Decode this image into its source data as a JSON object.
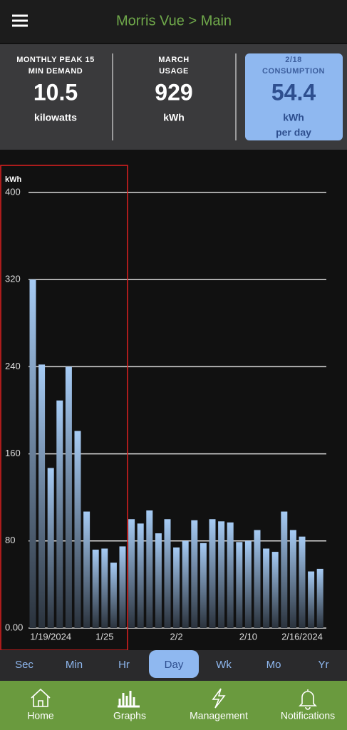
{
  "header": {
    "title": "Morris Vue > Main"
  },
  "stats": [
    {
      "title_lines": [
        "MONTHLY PEAK 15",
        "MIN DEMAND"
      ],
      "value": 10.5,
      "unit_lines": [
        "kilowatts"
      ]
    },
    {
      "title_lines": [
        "MARCH",
        "USAGE"
      ],
      "value": 929,
      "unit_lines": [
        "kWh"
      ]
    },
    {
      "title_lines": [
        "2/18",
        "CONSUMPTION"
      ],
      "value": 54.4,
      "unit_lines": [
        "kWh",
        "per day"
      ]
    }
  ],
  "chart_data": {
    "type": "bar",
    "y_axis_label": "kWh",
    "categories": [
      null,
      null,
      "1/19/2024",
      null,
      null,
      null,
      null,
      null,
      "1/25",
      null,
      null,
      null,
      null,
      null,
      null,
      null,
      "2/2",
      null,
      null,
      null,
      null,
      null,
      null,
      null,
      "2/10",
      null,
      null,
      null,
      null,
      null,
      "2/16/2024",
      null,
      null
    ],
    "values": [
      320,
      242,
      147,
      209,
      240,
      181,
      107,
      72,
      73,
      60,
      75,
      100,
      96,
      108,
      87,
      100,
      74,
      80,
      99,
      78,
      100,
      98,
      97,
      79,
      80,
      90,
      73,
      70,
      107,
      90,
      84,
      52,
      54.4
    ],
    "color": "#a6cbf4",
    "ylim": [
      0,
      400
    ],
    "yticks": [
      {
        "value": 0,
        "label": "0.00"
      },
      80,
      160,
      240,
      320,
      400
    ],
    "grid": true
  },
  "tabs": [
    "Sec",
    "Min",
    "Hr",
    "Day",
    "Wk",
    "Mo",
    "Yr"
  ],
  "selected_tab": 3,
  "nav": [
    "Home",
    "Graphs",
    "Management",
    "Notifications"
  ]
}
